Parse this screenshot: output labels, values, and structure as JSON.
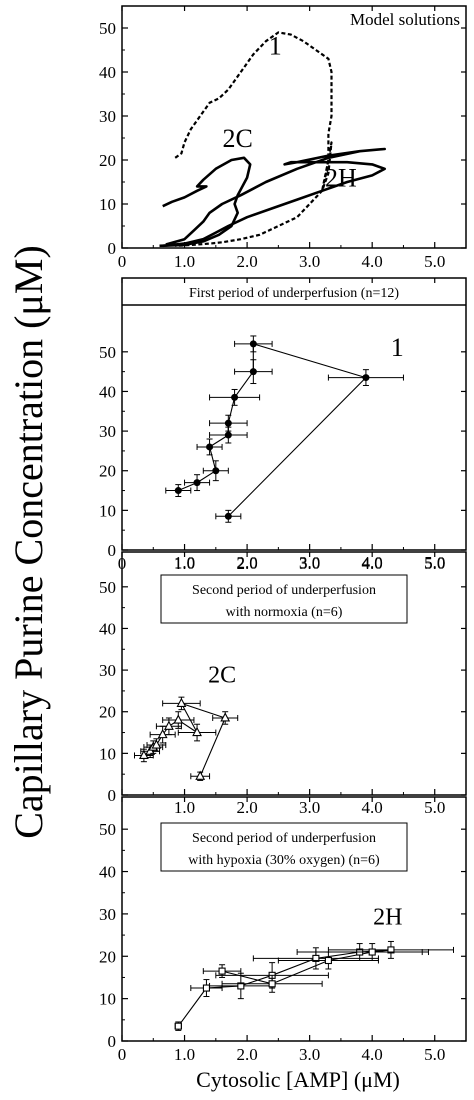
{
  "figure": {
    "ylabel": "Capillary Purine Concentration (μM)",
    "xlabel": "Cytosolic [AMP] (μM)"
  },
  "chart_data": [
    {
      "type": "line",
      "id": "model",
      "title": "Model solutions",
      "xlim": [
        0,
        5.5
      ],
      "ylim": [
        0,
        55
      ],
      "xticks": [
        "0",
        "1.0",
        "2.0",
        "3.0",
        "4.0",
        "5.0"
      ],
      "yticks": [
        "0",
        "10",
        "20",
        "30",
        "40",
        "50"
      ],
      "series": [
        {
          "name": "1",
          "style": "dashed",
          "x": [
            0.85,
            0.95,
            1.0,
            1.1,
            1.25,
            1.4,
            1.55,
            1.7,
            1.9,
            2.1,
            2.3,
            2.5,
            2.7,
            2.9,
            3.1,
            3.3,
            3.35,
            3.35,
            3.3,
            3.3,
            3.25,
            3.2,
            3.3,
            3.35,
            3.3,
            3.2,
            3.0,
            2.8,
            2.5,
            2.2,
            1.9,
            1.6,
            1.4,
            1.2,
            1.0,
            0.85
          ],
          "y": [
            20.5,
            21.5,
            24,
            27,
            30,
            33,
            34,
            36,
            40,
            44,
            47,
            49,
            48.5,
            47,
            45,
            43,
            40,
            30,
            26,
            20,
            16,
            13,
            20,
            24,
            17,
            13,
            10,
            7,
            5,
            3,
            2,
            1.3,
            1.0,
            0.8,
            0.6,
            0.5
          ]
        },
        {
          "name": "2C",
          "style": "solid",
          "x": [
            0.6,
            1.0,
            1.3,
            1.55,
            1.75,
            1.85,
            1.8,
            1.85,
            2.0,
            2.05,
            1.95,
            1.75,
            1.5,
            1.3,
            1.2,
            1.35,
            1.2,
            1.0,
            0.8,
            0.65
          ],
          "y": [
            0.5,
            0.7,
            1.5,
            3,
            5,
            8,
            10,
            12,
            16,
            19,
            20.5,
            20,
            18,
            15.5,
            14,
            14,
            13,
            11.5,
            10.5,
            9.5
          ]
        },
        {
          "name": "2H",
          "style": "solid",
          "x": [
            0.65,
            1.0,
            1.3,
            1.5,
            1.7,
            2.0,
            2.4,
            2.8,
            3.2,
            3.6,
            4.0,
            4.2,
            4.0,
            3.6,
            3.1,
            2.7,
            2.6,
            2.8,
            3.3,
            3.8,
            4.2,
            3.8,
            3.3,
            2.8,
            2.3,
            1.9,
            1.6,
            1.4,
            1.3,
            1.15,
            1.0,
            0.7
          ],
          "y": [
            0.5,
            1.0,
            2.0,
            3.5,
            5,
            7,
            9,
            11,
            13,
            15,
            16.5,
            18,
            19,
            19.5,
            19.5,
            19.5,
            19,
            19.5,
            21,
            22,
            22.5,
            22,
            20.5,
            18,
            15,
            12,
            10,
            8,
            6,
            4,
            2,
            0.8
          ]
        }
      ],
      "annotations": [
        {
          "text": "1",
          "x": 2.45,
          "y": 44
        },
        {
          "text": "2C",
          "x": 1.85,
          "y": 23
        },
        {
          "text": "2H",
          "x": 3.5,
          "y": 14
        }
      ]
    },
    {
      "type": "line",
      "id": "first",
      "title": "First period of underperfusion (n=12)",
      "xlim": [
        0,
        5.5
      ],
      "ylim": [
        0,
        55
      ],
      "xticks": [
        "0",
        "1.0",
        "2.0",
        "3.0",
        "4.0",
        "5.0"
      ],
      "yticks": [
        "0",
        "10",
        "20",
        "30",
        "40",
        "50"
      ],
      "marker": "circle",
      "series": [
        {
          "name": "1",
          "x": [
            0.9,
            1.2,
            1.5,
            1.4,
            1.7,
            1.7,
            1.8,
            2.1,
            2.1,
            3.9,
            1.7
          ],
          "y": [
            15,
            17,
            20,
            26,
            29,
            32,
            38.5,
            45,
            52,
            43.5,
            8.5
          ],
          "xerr": [
            0.2,
            0.2,
            0.2,
            0.2,
            0.3,
            0.3,
            0.4,
            0.3,
            0.3,
            0.6,
            0.2
          ],
          "yerr": [
            1.5,
            2,
            2.5,
            2,
            2,
            2,
            2,
            3,
            2,
            2,
            1.5
          ]
        }
      ],
      "annotations": [
        {
          "text": "1",
          "x": 4.4,
          "y": 49
        }
      ]
    },
    {
      "type": "line",
      "id": "second-normoxia",
      "title": "Second period of underperfusion with normoxia (n=6)",
      "title_lines": [
        "Second period of underperfusion",
        "with normoxia (n=6)"
      ],
      "xlim": [
        0,
        5.5
      ],
      "ylim": [
        0,
        55
      ],
      "xticks": [
        "0",
        "1.0",
        "2.0",
        "3.0",
        "4.0",
        "5.0"
      ],
      "yticks": [
        "0",
        "10",
        "20",
        "30",
        "40",
        "50"
      ],
      "marker": "triangle",
      "series": [
        {
          "name": "2C",
          "x": [
            0.35,
            0.45,
            0.5,
            0.55,
            0.65,
            0.75,
            0.9,
            1.2,
            0.95,
            1.65,
            1.25
          ],
          "y": [
            9.5,
            10.5,
            11.5,
            12,
            14.5,
            16.5,
            18,
            15,
            22,
            18.5,
            4.5
          ],
          "xerr": [
            0.15,
            0.15,
            0.15,
            0.15,
            0.2,
            0.2,
            0.25,
            0.3,
            0.3,
            0.2,
            0.15
          ],
          "yerr": [
            1.5,
            1.5,
            1.5,
            1.5,
            2,
            2,
            2,
            2,
            1.5,
            1.5,
            1.0
          ]
        }
      ],
      "annotations": [
        {
          "text": "2C",
          "x": 1.6,
          "y": 27
        }
      ]
    },
    {
      "type": "line",
      "id": "second-hypoxia",
      "title": "Second period of underperfusion with hypoxia (30% oxygen) (n=6)",
      "title_lines": [
        "Second period of underperfusion",
        "with hypoxia (30% oxygen) (n=6)"
      ],
      "xlim": [
        0,
        5.5
      ],
      "ylim": [
        0,
        55
      ],
      "xticks": [
        "0",
        "1.0",
        "2.0",
        "3.0",
        "4.0",
        "5.0"
      ],
      "yticks": [
        "0",
        "10",
        "20",
        "30",
        "40",
        "50"
      ],
      "marker": "square",
      "series": [
        {
          "name": "2H",
          "x": [
            0.9,
            1.35,
            1.9,
            2.4,
            3.1,
            3.8,
            4.3,
            4.0,
            3.3,
            2.4,
            1.6
          ],
          "y": [
            3.5,
            12.5,
            13,
            15.5,
            19.5,
            21,
            21.5,
            21,
            19,
            13.5,
            16.5
          ],
          "xerr": [
            0.05,
            0.25,
            0.5,
            0.9,
            1.0,
            1.0,
            1.0,
            0.9,
            0.8,
            0.8,
            0.3
          ],
          "yerr": [
            1,
            2,
            3,
            3,
            2.5,
            2,
            2,
            2,
            2,
            2,
            1.5
          ]
        }
      ],
      "annotations": [
        {
          "text": "2H",
          "x": 4.25,
          "y": 27.5
        }
      ]
    }
  ]
}
